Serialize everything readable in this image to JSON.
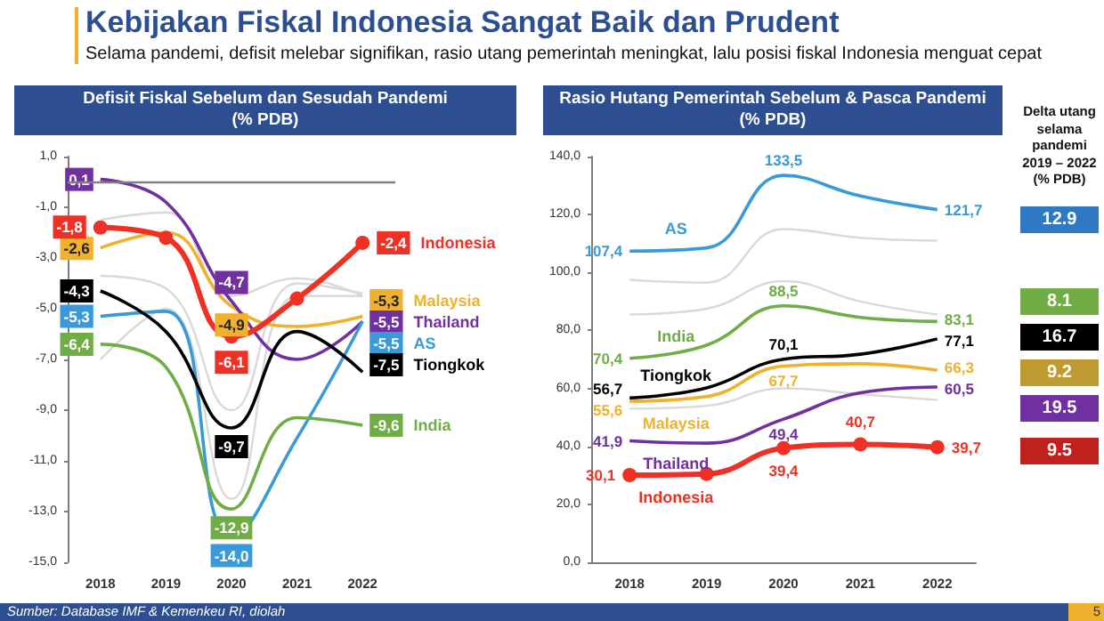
{
  "chart_data": [
    {
      "type": "other",
      "title": "Kebijakan Fiskal Indonesia Sangat Baik dan Prudent",
      "subtitle": "Selama pandemi, defisit melebar signifikan, rasio utang pemerintah meningkat, lalu posisi fiskal Indonesia menguat cepat",
      "annotations": [
        "Sumber: Database IMF & Kemenkeu RI, diolah",
        "5"
      ]
    },
    {
      "type": "line",
      "title": "Defisit Fiskal Sebelum dan Sesudah Pandemi",
      "subtitle": "(% PDB)",
      "categories": [
        "2018",
        "2019",
        "2020",
        "2021",
        "2022"
      ],
      "ylim": [
        -15,
        1
      ],
      "yticks": [
        {
          "value": 1,
          "label": "1,0"
        },
        {
          "value": -1,
          "label": "-1,0"
        },
        {
          "value": -3,
          "label": "-3,0"
        },
        {
          "value": -5,
          "label": "-5,0"
        },
        {
          "value": -7,
          "label": "-7,0"
        },
        {
          "value": -9,
          "label": "-9,0"
        },
        {
          "value": -11,
          "label": "-11,0"
        },
        {
          "value": -13,
          "label": "-13,0"
        },
        {
          "value": -15,
          "label": "-15,0"
        }
      ],
      "marker": "none",
      "grid": false,
      "legend": "right",
      "ref_lines": [
        {
          "axis": "y",
          "value": 0,
          "color": "#7f7f7f"
        }
      ],
      "series": [
        {
          "color": "#d9d9d9",
          "values": [
            -1.5,
            -1.2,
            -4.5,
            -3.8,
            -4.5
          ]
        },
        {
          "color": "#d9d9d9",
          "values": [
            -3.7,
            -4.2,
            -9.0,
            -4.0,
            -4.4
          ]
        },
        {
          "color": "#d9d9d9",
          "values": [
            -7.0,
            -5.0,
            -12.5,
            -4.5,
            -4.5
          ]
        },
        {
          "name": "Malaysia",
          "color": "#f0b12e",
          "values": [
            -2.6,
            -2.0,
            -4.9,
            -5.7,
            -5.3
          ],
          "value_labels": [
            "-2,6",
            null,
            "-4,9",
            null,
            "-5,3"
          ]
        },
        {
          "name": "Thailand",
          "color": "#7030a0",
          "values": [
            0.1,
            -0.8,
            -4.7,
            -7.0,
            -5.5
          ],
          "value_labels": [
            "0,1",
            null,
            "-4,7",
            null,
            "-5,5"
          ]
        },
        {
          "name": "AS",
          "color": "#3a9ad9",
          "values": [
            -5.3,
            -5.1,
            -14.0,
            -10.1,
            -5.5
          ],
          "value_labels": [
            "-5,3",
            null,
            "-14,0",
            null,
            "-5,5"
          ]
        },
        {
          "name": "Tiongkok",
          "color": "#000000",
          "values": [
            -4.3,
            -5.9,
            -9.7,
            -5.9,
            -7.5
          ],
          "value_labels": [
            "-4,3",
            null,
            "-9,7",
            null,
            "-7,5"
          ]
        },
        {
          "name": "India",
          "color": "#70ad47",
          "values": [
            -6.4,
            -7.3,
            -12.9,
            -9.3,
            -9.6
          ],
          "value_labels": [
            "-6,4",
            null,
            "-12,9",
            null,
            "-9,6"
          ]
        },
        {
          "name": "Indonesia",
          "color": "#ee3124",
          "marker": "circle",
          "values": [
            -1.8,
            -2.2,
            -6.1,
            -4.6,
            -2.4
          ],
          "value_labels": [
            "-1,8",
            null,
            "-6,1",
            null,
            "-2,4"
          ]
        }
      ]
    },
    {
      "type": "line",
      "title": "Rasio Hutang Pemerintah Sebelum & Pasca Pandemi",
      "subtitle": "(% PDB)",
      "categories": [
        "2018",
        "2019",
        "2020",
        "2021",
        "2022"
      ],
      "ylim": [
        0,
        140
      ],
      "yticks": [
        {
          "value": 0,
          "label": "0,0"
        },
        {
          "value": 20,
          "label": "20,0"
        },
        {
          "value": 40,
          "label": "40,0"
        },
        {
          "value": 60,
          "label": "60,0"
        },
        {
          "value": 80,
          "label": "80,0"
        },
        {
          "value": 100,
          "label": "100,0"
        },
        {
          "value": 120,
          "label": "120,0"
        },
        {
          "value": 140,
          "label": "140,0"
        }
      ],
      "marker": "none",
      "grid": false,
      "series": [
        {
          "color": "#d9d9d9",
          "values": [
            97.5,
            96.5,
            115,
            112,
            111
          ]
        },
        {
          "color": "#d9d9d9",
          "values": [
            85.5,
            87.5,
            97,
            90,
            85.5
          ]
        },
        {
          "color": "#d9d9d9",
          "values": [
            53,
            54,
            60,
            58,
            56
          ]
        },
        {
          "name": "AS",
          "color": "#3a9ad9",
          "values": [
            107.4,
            108.5,
            133.5,
            126.4,
            121.7
          ],
          "value_labels": [
            "107,4",
            null,
            "133,5",
            null,
            "121,7"
          ]
        },
        {
          "name": "India",
          "color": "#70ad47",
          "values": [
            70.4,
            74.9,
            88.5,
            84.5,
            83.1
          ],
          "value_labels": [
            "70,4",
            null,
            "88,5",
            null,
            "83,1"
          ]
        },
        {
          "name": "Tiongkok",
          "color": "#000000",
          "values": [
            56.7,
            60.2,
            70.1,
            71.8,
            77.1
          ],
          "value_labels": [
            "56,7",
            null,
            "70,1",
            null,
            "77,1"
          ]
        },
        {
          "name": "Malaysia",
          "color": "#f0b12e",
          "values": [
            55.6,
            57.2,
            67.7,
            68.5,
            66.3
          ],
          "value_labels": [
            "55,6",
            null,
            "67,7",
            null,
            "66,3"
          ]
        },
        {
          "name": "Thailand",
          "color": "#7030a0",
          "values": [
            41.9,
            41.1,
            49.4,
            58.5,
            60.5
          ],
          "value_labels": [
            "41,9",
            null,
            "49,4",
            null,
            "60,5"
          ]
        },
        {
          "name": "Indonesia",
          "color": "#ee3124",
          "marker": "circle",
          "values": [
            30.1,
            30.5,
            39.4,
            40.7,
            39.7
          ],
          "value_labels": [
            "30,1",
            null,
            "39,4",
            "40,7",
            "39,7"
          ]
        }
      ]
    },
    {
      "type": "other",
      "title": "Delta utang selama pandemi 2019 – 2022 (% PDB)",
      "values": [
        12.9,
        8.1,
        16.7,
        9.2,
        19.5,
        9.5
      ],
      "colors": [
        "#2f78c4",
        "#70ad47",
        "#000000",
        "#bf9a30",
        "#7030a0",
        "#c0211d"
      ],
      "data_labels": true
    }
  ]
}
